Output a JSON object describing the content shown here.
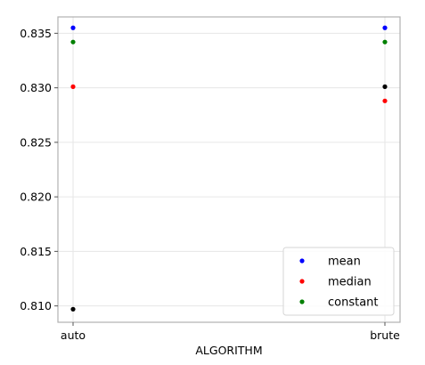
{
  "chart_data": {
    "type": "scatter",
    "categories": [
      "auto",
      "brute"
    ],
    "xlabel": "ALGORITHM",
    "ylabel": "",
    "title": "",
    "ylim": [
      0.8085,
      0.8365
    ],
    "yticks": [
      0.81,
      0.815,
      0.82,
      0.825,
      0.83,
      0.835
    ],
    "ytick_labels": [
      "0.810",
      "0.815",
      "0.820",
      "0.825",
      "0.830",
      "0.835"
    ],
    "grid": true,
    "legend_position": "bottom-right",
    "series": [
      {
        "name": "mean",
        "color": "#0000ff",
        "values": [
          0.8355,
          0.8355
        ]
      },
      {
        "name": "median",
        "color": "#ff0000",
        "values": [
          0.8301,
          0.8288
        ]
      },
      {
        "name": "constant",
        "color": "#008000",
        "values": [
          0.8342,
          0.8342
        ]
      },
      {
        "color": "#000000",
        "values": [
          0.8097,
          0.8301
        ]
      }
    ]
  }
}
